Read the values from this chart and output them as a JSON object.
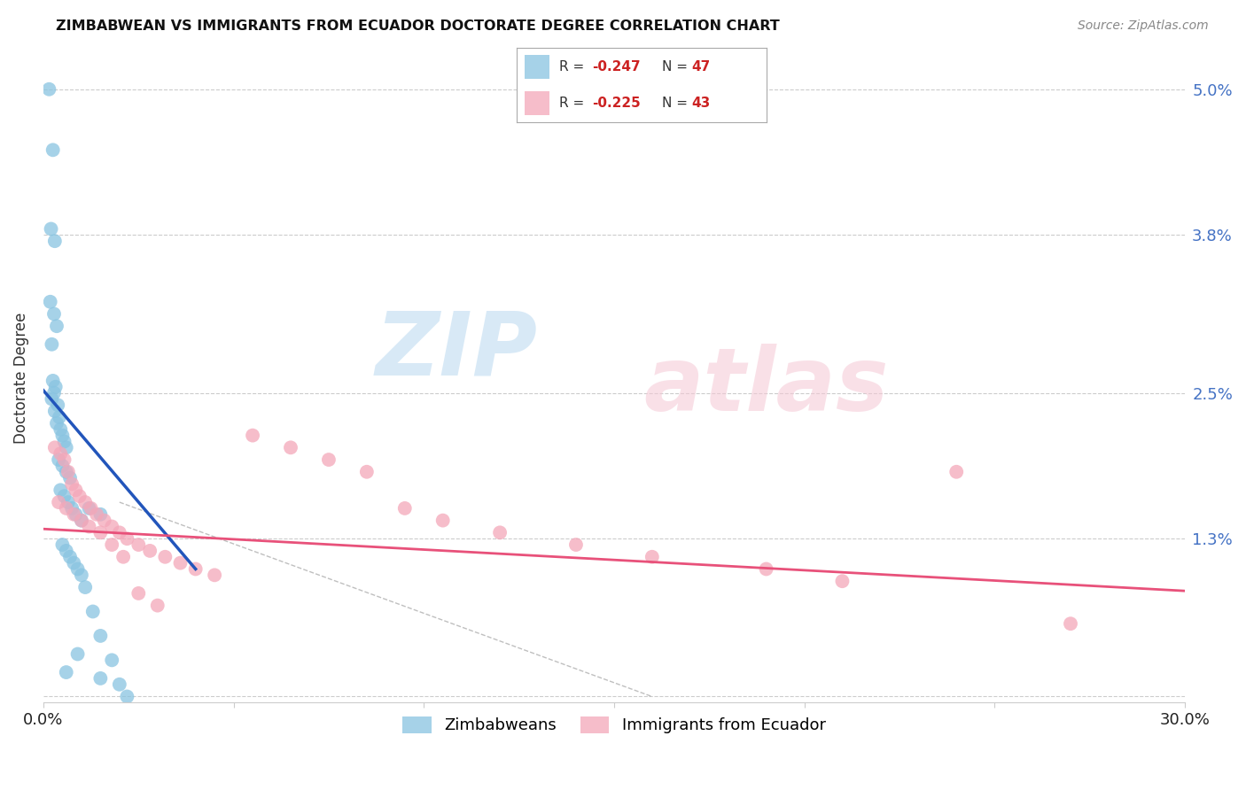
{
  "title": "ZIMBABWEAN VS IMMIGRANTS FROM ECUADOR DOCTORATE DEGREE CORRELATION CHART",
  "source": "Source: ZipAtlas.com",
  "ylabel": "Doctorate Degree",
  "xlim": [
    0.0,
    30.0
  ],
  "ylim": [
    0.0,
    5.3
  ],
  "yticks": [
    0.0,
    1.3,
    2.5,
    3.8,
    5.0
  ],
  "ytick_labels": [
    "",
    "1.3%",
    "2.5%",
    "3.8%",
    "5.0%"
  ],
  "xticks": [
    0.0,
    5.0,
    10.0,
    15.0,
    20.0,
    25.0,
    30.0
  ],
  "xtick_labels": [
    "0.0%",
    "",
    "",
    "",
    "",
    "",
    "30.0%"
  ],
  "color_blue": "#89c4e1",
  "color_pink": "#f4a7b9",
  "line_blue": "#2255bb",
  "line_pink": "#e8517a",
  "blue_line_x": [
    0.0,
    4.0
  ],
  "blue_line_y": [
    2.52,
    1.05
  ],
  "pink_line_x": [
    0.0,
    30.0
  ],
  "pink_line_y": [
    1.38,
    0.87
  ],
  "dash_line_x": [
    2.0,
    16.0
  ],
  "dash_line_y": [
    1.6,
    0.0
  ],
  "blue_x": [
    0.15,
    0.25,
    0.2,
    0.3,
    0.18,
    0.28,
    0.35,
    0.22,
    0.25,
    0.32,
    0.28,
    0.22,
    0.38,
    0.3,
    0.42,
    0.35,
    0.45,
    0.5,
    0.55,
    0.6,
    0.4,
    0.5,
    0.6,
    0.7,
    0.45,
    0.55,
    0.65,
    0.75,
    0.85,
    1.0,
    1.2,
    1.5,
    0.5,
    0.6,
    0.7,
    0.8,
    0.9,
    1.0,
    1.1,
    1.3,
    1.5,
    1.8,
    2.0,
    2.2,
    0.6,
    0.9,
    1.5
  ],
  "blue_y": [
    5.0,
    4.5,
    3.85,
    3.75,
    3.25,
    3.15,
    3.05,
    2.9,
    2.6,
    2.55,
    2.5,
    2.45,
    2.4,
    2.35,
    2.3,
    2.25,
    2.2,
    2.15,
    2.1,
    2.05,
    1.95,
    1.9,
    1.85,
    1.8,
    1.7,
    1.65,
    1.6,
    1.55,
    1.5,
    1.45,
    1.55,
    1.5,
    1.25,
    1.2,
    1.15,
    1.1,
    1.05,
    1.0,
    0.9,
    0.7,
    0.5,
    0.3,
    0.1,
    0.0,
    0.2,
    0.35,
    0.15
  ],
  "pink_x": [
    0.3,
    0.45,
    0.55,
    0.65,
    0.75,
    0.85,
    0.95,
    1.1,
    1.25,
    1.4,
    1.6,
    1.8,
    2.0,
    2.2,
    2.5,
    2.8,
    3.2,
    3.6,
    4.0,
    4.5,
    5.5,
    6.5,
    7.5,
    8.5,
    9.5,
    10.5,
    12.0,
    14.0,
    16.0,
    19.0,
    21.0,
    24.0,
    27.0,
    0.4,
    0.6,
    0.8,
    1.0,
    1.2,
    1.5,
    1.8,
    2.1,
    2.5,
    3.0
  ],
  "pink_y": [
    2.05,
    2.0,
    1.95,
    1.85,
    1.75,
    1.7,
    1.65,
    1.6,
    1.55,
    1.5,
    1.45,
    1.4,
    1.35,
    1.3,
    1.25,
    1.2,
    1.15,
    1.1,
    1.05,
    1.0,
    2.15,
    2.05,
    1.95,
    1.85,
    1.55,
    1.45,
    1.35,
    1.25,
    1.15,
    1.05,
    0.95,
    1.85,
    0.6,
    1.6,
    1.55,
    1.5,
    1.45,
    1.4,
    1.35,
    1.25,
    1.15,
    0.85,
    0.75
  ]
}
